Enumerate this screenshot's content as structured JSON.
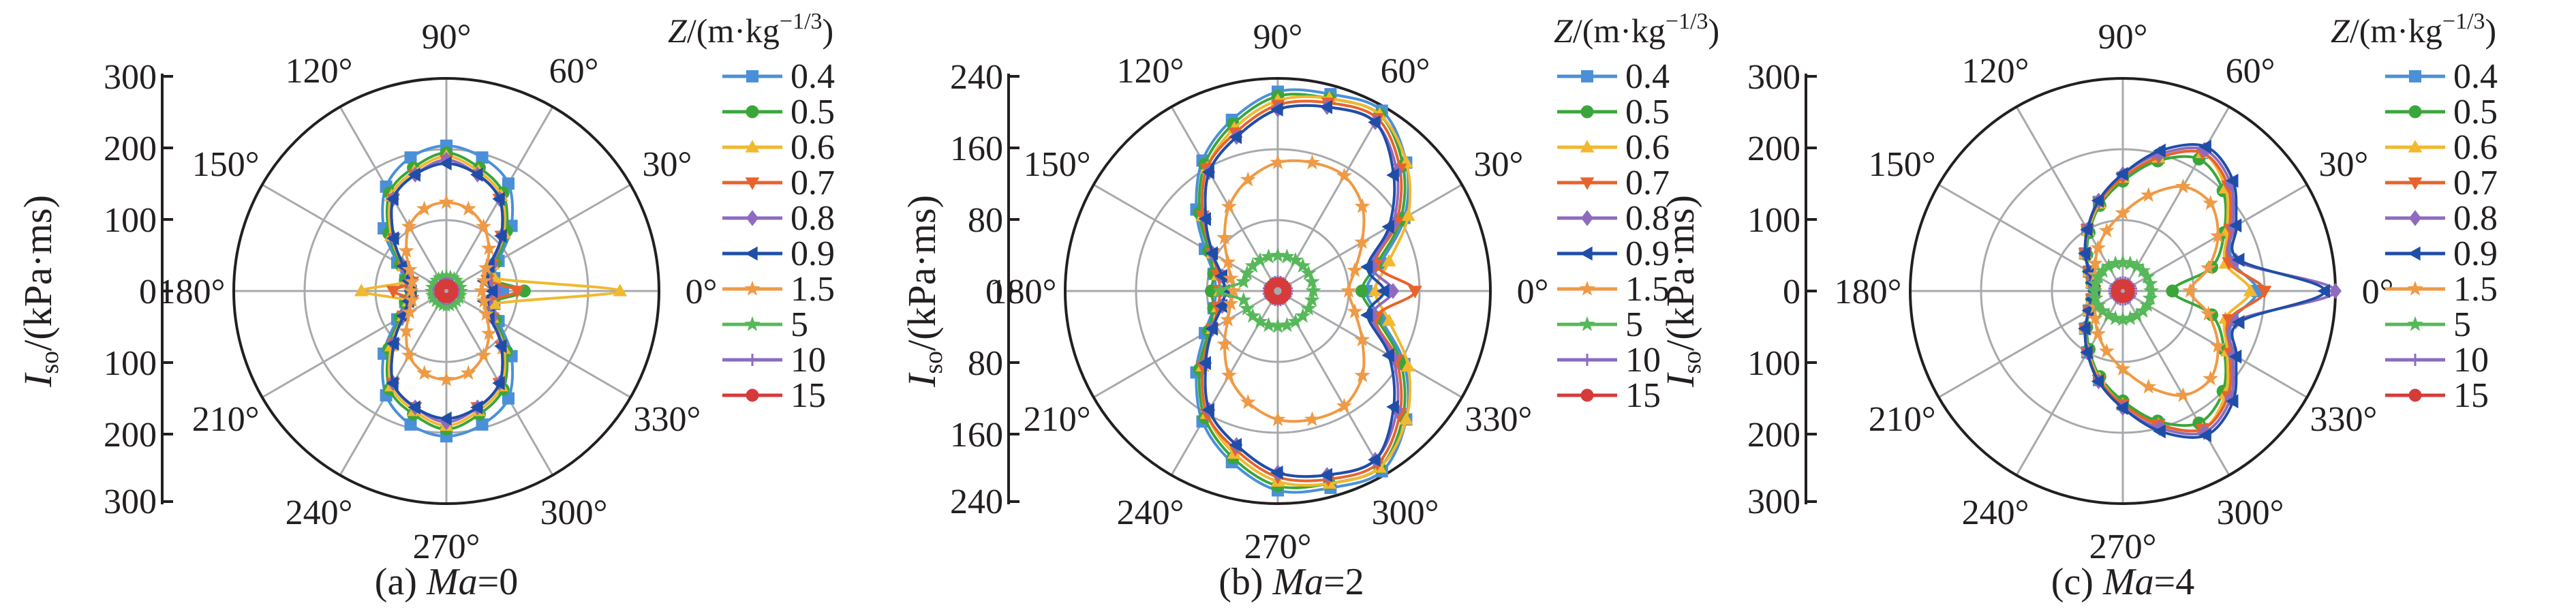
{
  "figure": {
    "series_names": [
      "0.4",
      "0.5",
      "0.6",
      "0.7",
      "0.8",
      "0.9",
      "1.5",
      "5",
      "10",
      "15"
    ],
    "series_colors": [
      "#4a90d9",
      "#3aa63a",
      "#f2b82e",
      "#e8632c",
      "#8e6bbf",
      "#1f4ea8",
      "#ef9a45",
      "#57b85a",
      "#8a6cc0",
      "#d63b3b"
    ],
    "series_markers": [
      "square",
      "circle",
      "triangle-up",
      "triangle-down",
      "diamond",
      "triangle-left",
      "star",
      "star",
      "plus",
      "circle"
    ],
    "angle_labels": [
      "0°",
      "30°",
      "60°",
      "90°",
      "120°",
      "150°",
      "180°",
      "210°",
      "240°",
      "270°",
      "300°",
      "330°"
    ]
  },
  "panels": [
    {
      "caption_prefix": "(a) ",
      "caption_var": "Ma",
      "caption_value": "=0",
      "legend_title_var": "Z",
      "legend_title_unit": "/(m·kg",
      "legend_title_exp": "−1/3",
      "legend_title_close": ")",
      "ylabel_var": "I",
      "ylabel_sub": "so",
      "ylabel_unit": "/(kPa·ms)",
      "yticks": [
        "300",
        "200",
        "100",
        "0",
        "100",
        "200",
        "300"
      ]
    },
    {
      "caption_prefix": "(b) ",
      "caption_var": "Ma",
      "caption_value": "=2",
      "legend_title_var": "Z",
      "legend_title_unit": "/(m·kg",
      "legend_title_exp": "−1/3",
      "legend_title_close": ")",
      "ylabel_var": "I",
      "ylabel_sub": "so",
      "ylabel_unit": "/(kPa·ms)",
      "yticks": [
        "240",
        "160",
        "80",
        "0",
        "80",
        "160",
        "240"
      ]
    },
    {
      "caption_prefix": "(c) ",
      "caption_var": "Ma",
      "caption_value": "=4",
      "legend_title_var": "Z",
      "legend_title_unit": "/(m·kg",
      "legend_title_exp": "−1/3",
      "legend_title_close": ")",
      "ylabel_var": "I",
      "ylabel_sub": "so",
      "ylabel_unit": "/(kPa·ms)",
      "yticks": [
        "300",
        "200",
        "100",
        "0",
        "100",
        "200",
        "300"
      ]
    }
  ],
  "chart_data": [
    {
      "type": "polar-line",
      "title": "(a) Ma=0",
      "rlim": [
        0,
        300
      ],
      "theta_deg": [
        0,
        15,
        30,
        45,
        60,
        75,
        90,
        105,
        120,
        135,
        150,
        165,
        180,
        195,
        210,
        225,
        240,
        255,
        270,
        285,
        300,
        315,
        330,
        345
      ],
      "series": [
        {
          "name": "0.4",
          "values": [
            80,
            70,
            85,
            130,
            175,
            195,
            205,
            195,
            170,
            125,
            80,
            60,
            50,
            60,
            80,
            125,
            170,
            195,
            205,
            195,
            175,
            130,
            85,
            70
          ]
        },
        {
          "name": "0.5",
          "values": [
            110,
            65,
            80,
            120,
            160,
            180,
            195,
            180,
            160,
            115,
            75,
            60,
            50,
            60,
            75,
            115,
            160,
            180,
            195,
            180,
            160,
            120,
            80,
            65
          ]
        },
        {
          "name": "0.6",
          "values": [
            245,
            70,
            75,
            115,
            155,
            175,
            190,
            175,
            155,
            110,
            70,
            55,
            120,
            55,
            70,
            110,
            155,
            175,
            190,
            175,
            155,
            115,
            75,
            70
          ]
        },
        {
          "name": "0.7",
          "values": [
            100,
            60,
            75,
            110,
            150,
            170,
            185,
            170,
            150,
            105,
            70,
            50,
            75,
            50,
            70,
            105,
            150,
            170,
            185,
            170,
            150,
            110,
            75,
            60
          ]
        },
        {
          "name": "0.8",
          "values": [
            70,
            60,
            75,
            110,
            150,
            170,
            185,
            170,
            150,
            105,
            70,
            55,
            50,
            55,
            70,
            105,
            150,
            170,
            185,
            170,
            150,
            110,
            75,
            60
          ]
        },
        {
          "name": "0.9",
          "values": [
            65,
            55,
            70,
            110,
            150,
            170,
            180,
            170,
            150,
            105,
            70,
            55,
            50,
            55,
            70,
            105,
            150,
            170,
            180,
            170,
            150,
            110,
            70,
            55
          ]
        },
        {
          "name": "1.5",
          "values": [
            50,
            55,
            65,
            85,
            105,
            120,
            125,
            120,
            105,
            80,
            60,
            50,
            50,
            50,
            60,
            80,
            105,
            120,
            125,
            120,
            105,
            85,
            65,
            55
          ]
        },
        {
          "name": "5",
          "values": [
            22,
            22,
            22,
            22,
            22,
            22,
            22,
            22,
            22,
            22,
            22,
            22,
            22,
            22,
            22,
            22,
            22,
            22,
            22,
            22,
            22,
            22,
            22,
            22
          ]
        },
        {
          "name": "10",
          "values": [
            13,
            13,
            13,
            13,
            13,
            13,
            13,
            13,
            13,
            13,
            13,
            13,
            13,
            13,
            13,
            13,
            13,
            13,
            13,
            13,
            13,
            13,
            13,
            13
          ]
        },
        {
          "name": "15",
          "values": [
            10,
            10,
            10,
            10,
            10,
            10,
            10,
            10,
            10,
            10,
            10,
            10,
            10,
            10,
            10,
            10,
            10,
            10,
            10,
            10,
            10,
            10,
            10,
            10
          ]
        }
      ]
    },
    {
      "type": "polar-line",
      "title": "(b) Ma=2",
      "rlim": [
        0,
        240
      ],
      "theta_deg": [
        0,
        15,
        30,
        45,
        60,
        75,
        90,
        105,
        120,
        135,
        150,
        165,
        180,
        195,
        210,
        225,
        240,
        255,
        270,
        285,
        300,
        315,
        330,
        345
      ],
      "series": [
        {
          "name": "0.4",
          "values": [
            100,
            120,
            165,
            205,
            235,
            230,
            225,
            200,
            170,
            130,
            95,
            75,
            70,
            75,
            95,
            130,
            170,
            200,
            225,
            230,
            235,
            205,
            165,
            120
          ]
        },
        {
          "name": "0.5",
          "values": [
            95,
            115,
            160,
            200,
            230,
            225,
            220,
            195,
            165,
            125,
            90,
            75,
            75,
            75,
            90,
            125,
            165,
            195,
            220,
            225,
            230,
            200,
            160,
            115
          ]
        },
        {
          "name": "0.6",
          "values": [
            110,
            130,
            170,
            205,
            230,
            225,
            215,
            190,
            160,
            120,
            85,
            70,
            65,
            70,
            85,
            120,
            160,
            190,
            215,
            225,
            230,
            205,
            170,
            130
          ]
        },
        {
          "name": "0.7",
          "values": [
            155,
            115,
            155,
            195,
            225,
            220,
            210,
            185,
            160,
            120,
            85,
            70,
            65,
            70,
            85,
            120,
            160,
            185,
            210,
            220,
            225,
            195,
            155,
            115
          ]
        },
        {
          "name": "0.8",
          "values": [
            130,
            110,
            150,
            190,
            220,
            215,
            205,
            180,
            155,
            115,
            85,
            65,
            60,
            65,
            85,
            115,
            155,
            180,
            205,
            215,
            220,
            190,
            150,
            110
          ]
        },
        {
          "name": "0.9",
          "values": [
            120,
            105,
            145,
            185,
            220,
            215,
            205,
            180,
            155,
            115,
            85,
            65,
            60,
            65,
            85,
            115,
            155,
            180,
            205,
            215,
            220,
            185,
            145,
            105
          ]
        },
        {
          "name": "1.5",
          "values": [
            80,
            90,
            110,
            135,
            150,
            150,
            145,
            130,
            110,
            85,
            65,
            55,
            50,
            55,
            65,
            85,
            110,
            130,
            145,
            150,
            150,
            135,
            110,
            90
          ]
        },
        {
          "name": "5",
          "values": [
            40,
            40,
            40,
            40,
            40,
            40,
            40,
            40,
            40,
            40,
            40,
            40,
            65,
            40,
            40,
            40,
            40,
            40,
            40,
            40,
            40,
            40,
            40,
            40
          ]
        },
        {
          "name": "10",
          "values": [
            12,
            12,
            12,
            12,
            12,
            12,
            12,
            12,
            12,
            12,
            12,
            12,
            12,
            12,
            12,
            12,
            12,
            12,
            12,
            12,
            12,
            12,
            12,
            12
          ]
        },
        {
          "name": "15",
          "values": [
            10,
            10,
            10,
            10,
            10,
            10,
            10,
            10,
            10,
            10,
            10,
            10,
            10,
            10,
            10,
            10,
            10,
            10,
            10,
            10,
            10,
            10,
            10,
            10
          ]
        }
      ]
    },
    {
      "type": "polar-line",
      "title": "(c) Ma=4",
      "rlim": [
        0,
        300
      ],
      "theta_deg": [
        0,
        15,
        30,
        45,
        60,
        75,
        90,
        105,
        120,
        135,
        150,
        165,
        180,
        195,
        210,
        225,
        240,
        255,
        270,
        285,
        300,
        315,
        330,
        345
      ],
      "series": [
        {
          "name": "0.4",
          "values": [
            190,
            160,
            175,
            210,
            225,
            195,
            160,
            130,
            100,
            75,
            55,
            45,
            40,
            45,
            55,
            75,
            100,
            130,
            160,
            195,
            225,
            210,
            175,
            160
          ]
        },
        {
          "name": "0.5",
          "values": [
            70,
            130,
            165,
            200,
            215,
            190,
            155,
            125,
            95,
            72,
            55,
            45,
            40,
            45,
            55,
            72,
            95,
            125,
            155,
            190,
            215,
            200,
            165,
            130
          ]
        },
        {
          "name": "0.6",
          "values": [
            180,
            150,
            170,
            205,
            225,
            195,
            160,
            128,
            98,
            75,
            55,
            45,
            40,
            45,
            55,
            75,
            98,
            128,
            160,
            195,
            225,
            205,
            170,
            150
          ]
        },
        {
          "name": "0.7",
          "values": [
            200,
            155,
            175,
            210,
            225,
            195,
            160,
            130,
            100,
            75,
            55,
            45,
            40,
            45,
            55,
            75,
            100,
            130,
            160,
            195,
            225,
            210,
            175,
            155
          ]
        },
        {
          "name": "0.8",
          "values": [
            300,
            165,
            180,
            215,
            230,
            200,
            165,
            132,
            100,
            75,
            55,
            45,
            40,
            45,
            55,
            75,
            100,
            132,
            165,
            200,
            230,
            215,
            180,
            165
          ]
        },
        {
          "name": "0.9",
          "values": [
            285,
            170,
            185,
            220,
            235,
            205,
            165,
            132,
            100,
            75,
            55,
            45,
            40,
            45,
            55,
            75,
            100,
            132,
            165,
            205,
            235,
            220,
            185,
            170
          ]
        },
        {
          "name": "1.5",
          "values": [
            95,
            125,
            155,
            175,
            170,
            140,
            110,
            88,
            70,
            55,
            45,
            40,
            40,
            40,
            45,
            55,
            70,
            88,
            110,
            140,
            170,
            175,
            155,
            125
          ]
        },
        {
          "name": "5",
          "values": [
            40,
            40,
            40,
            40,
            40,
            40,
            40,
            40,
            40,
            40,
            40,
            40,
            40,
            40,
            40,
            40,
            40,
            40,
            40,
            40,
            40,
            40,
            40,
            40
          ]
        },
        {
          "name": "10",
          "values": [
            14,
            14,
            14,
            14,
            14,
            14,
            14,
            14,
            14,
            14,
            14,
            14,
            14,
            14,
            14,
            14,
            14,
            14,
            14,
            14,
            14,
            14,
            14,
            14
          ]
        },
        {
          "name": "15",
          "values": [
            10,
            10,
            10,
            10,
            10,
            10,
            10,
            10,
            10,
            10,
            10,
            10,
            10,
            10,
            10,
            10,
            10,
            10,
            10,
            10,
            10,
            10,
            10,
            10
          ]
        }
      ]
    }
  ]
}
